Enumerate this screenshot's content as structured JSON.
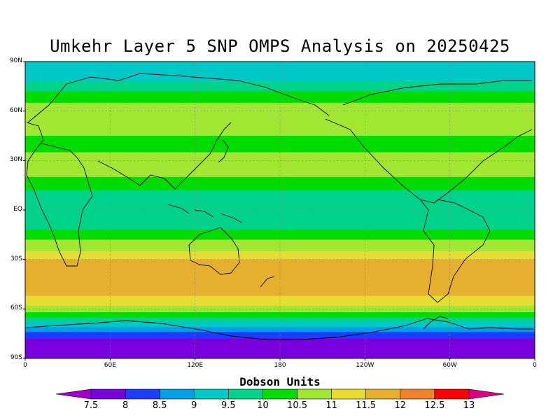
{
  "title": "Umkehr Layer 5 SNP OMPS Analysis on 20250425",
  "lat_labels": [
    "90N",
    "60N",
    "30N",
    "EQ",
    "30S",
    "60S",
    "90S"
  ],
  "lon_labels": [
    "0",
    "60E",
    "120E",
    "180",
    "120W",
    "60W",
    "0"
  ],
  "colorbar": {
    "title": "Dobson Units",
    "ticks": [
      "7.5",
      "8",
      "8.5",
      "9",
      "9.5",
      "10",
      "10.5",
      "11",
      "11.5",
      "12",
      "12.5",
      "13"
    ],
    "colors": [
      "#a000c8",
      "#7800dc",
      "#1e3cff",
      "#00a0e6",
      "#00c8c8",
      "#00d28c",
      "#00dc00",
      "#a0e632",
      "#e6dc32",
      "#e6af2d",
      "#f08228",
      "#fa0000",
      "#dc0082"
    ]
  },
  "map": {
    "projection": "cylindrical equidistant",
    "lon_range": [
      0,
      360
    ],
    "lat_range": [
      -90,
      90
    ],
    "field": "ozone partial column, Umkehr layer 5",
    "units": "Dobson Units",
    "bands": [
      {
        "lat_from": 90,
        "lat_to": 78,
        "value": 9
      },
      {
        "lat_from": 78,
        "lat_to": 72,
        "value": 9.5
      },
      {
        "lat_from": 72,
        "lat_to": 65,
        "value": 10
      },
      {
        "lat_from": 65,
        "lat_to": 45,
        "value": 10.5
      },
      {
        "lat_from": 45,
        "lat_to": 35,
        "value": 10
      },
      {
        "lat_from": 35,
        "lat_to": 20,
        "value": 10.5
      },
      {
        "lat_from": 20,
        "lat_to": 12,
        "value": 10
      },
      {
        "lat_from": 12,
        "lat_to": -12,
        "value": 9.5
      },
      {
        "lat_from": -12,
        "lat_to": -18,
        "value": 10
      },
      {
        "lat_from": -18,
        "lat_to": -25,
        "value": 10.5
      },
      {
        "lat_from": -25,
        "lat_to": -30,
        "value": 11
      },
      {
        "lat_from": -30,
        "lat_to": -52,
        "value": 11.5
      },
      {
        "lat_from": -52,
        "lat_to": -58,
        "value": 11
      },
      {
        "lat_from": -58,
        "lat_to": -62,
        "value": 10.5
      },
      {
        "lat_from": -62,
        "lat_to": -65,
        "value": 10
      },
      {
        "lat_from": -65,
        "lat_to": -68,
        "value": 9.5
      },
      {
        "lat_from": -68,
        "lat_to": -71,
        "value": 9
      },
      {
        "lat_from": -71,
        "lat_to": -74,
        "value": 8.5
      },
      {
        "lat_from": -74,
        "lat_to": -78,
        "value": 8
      },
      {
        "lat_from": -78,
        "lat_to": -90,
        "value": 7.5
      }
    ]
  }
}
